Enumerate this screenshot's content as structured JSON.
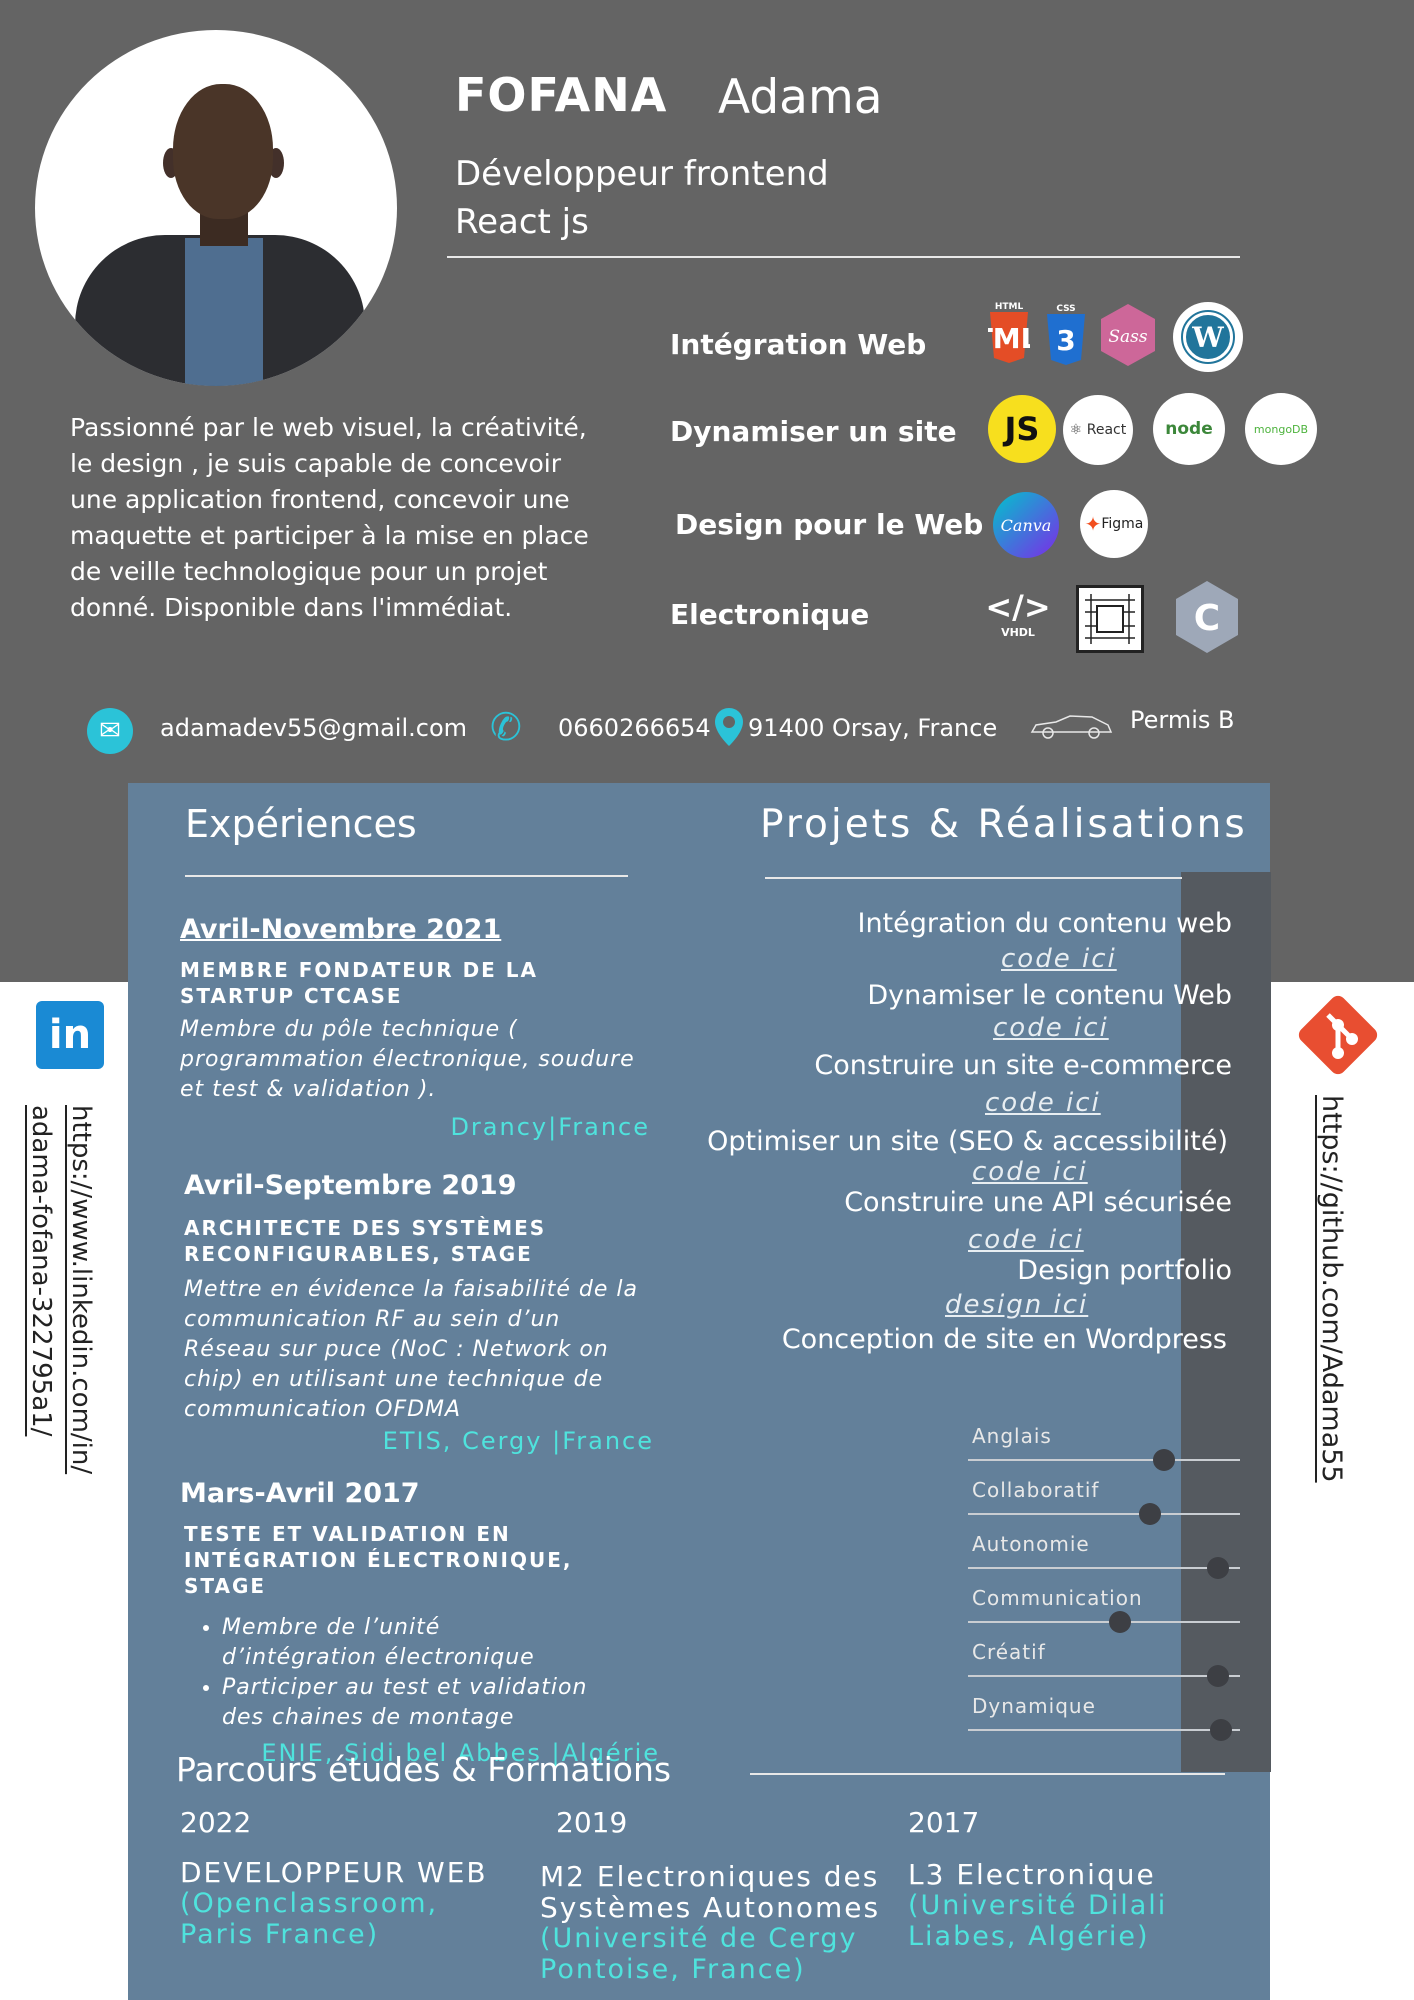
{
  "header": {
    "last_name": "FOFANA",
    "first_name": "Adama",
    "job_line1": "Développeur frontend",
    "job_line2": "React js"
  },
  "skills": {
    "web": {
      "label": "Intégration Web",
      "icons": [
        "HTML 5",
        "CSS 3",
        "Sass",
        "W"
      ]
    },
    "dynamic": {
      "label": "Dynamiser un site",
      "icons": [
        "JS",
        "React",
        "node",
        "mongoDB"
      ]
    },
    "design": {
      "label": "Design pour le Web",
      "icons": [
        "Canva",
        "Figma"
      ]
    },
    "electronics": {
      "label": "Electronique",
      "icons": [
        "</>",
        "VHDL",
        "C"
      ]
    }
  },
  "about": "Passionné par le web visuel, la créativité, le design , je suis capable de concevoir une application frontend, concevoir une maquette et participer à la mise en place de veille technologique pour un projet donné. Disponible dans l'immédiat.",
  "contact": {
    "email": "adamadev55@gmail.com",
    "phone": "0660266654",
    "location": "91400 Orsay, France",
    "license": "Permis  B"
  },
  "links": {
    "linkedin_line1": "https://www.linkedin.com/in/",
    "linkedin_line2": "adama-fofana-322795a1/",
    "github": "https://github.com/Adama55",
    "linkedin_icon": "in",
    "github_icon": "git"
  },
  "experiences": {
    "title": "Expériences",
    "items": [
      {
        "date": "Avril-Novembre 2021",
        "role": "MEMBRE FONDATEUR DE LA STARTUP CTCASE",
        "desc": "Membre du pôle technique ( programmation électronique, soudure et test & validation ).",
        "place": "Drancy|France"
      },
      {
        "date": "Avril-Septembre 2019",
        "role": "ARCHITECTE DES SYSTÈMES RECONFIGURABLES, STAGE",
        "desc": "Mettre en évidence la faisabilité de la communication RF au sein d’un Réseau sur puce (NoC : Network on chip) en utilisant une technique de communication OFDMA",
        "place": "ETIS, Cergy |France"
      },
      {
        "date": "Mars-Avril 2017",
        "role": "TESTE ET VALIDATION EN INTÉGRATION ÉLECTRONIQUE, STAGE",
        "bullets": [
          "Membre de l’unité d’intégration électronique",
          "Participer au test et validation des chaines de montage"
        ],
        "place": "ENIE, Sidi bel Abbes |Algérie"
      }
    ]
  },
  "projects": {
    "title": "Projets & Réalisations",
    "items": [
      {
        "label": "Intégration du contenu web",
        "link": "code ici"
      },
      {
        "label": "Dynamiser le contenu Web",
        "link": "code ici"
      },
      {
        "label": "Construire un site e-commerce",
        "link": "code ici"
      },
      {
        "label": "Optimiser un site (SEO & accessibilité)",
        "link": "code ici"
      },
      {
        "label": "Construire une API sécurisée",
        "link": "code ici"
      },
      {
        "label": "Design portfolio",
        "link": "design ici"
      },
      {
        "label": "Conception de site en Wordpress"
      }
    ]
  },
  "soft_skills": [
    {
      "label": "Anglais",
      "level": 0.72
    },
    {
      "label": "Collaboratif",
      "level": 0.67
    },
    {
      "label": "Autonomie",
      "level": 0.92
    },
    {
      "label": "Communication",
      "level": 0.56
    },
    {
      "label": "Créatif",
      "level": 0.92
    },
    {
      "label": "Dynamique",
      "level": 0.93
    }
  ],
  "education": {
    "title": "Parcours études & Formations",
    "items": [
      {
        "year": "2022",
        "title": "DEVELOPPEUR WEB",
        "school": "(Openclassroom, Paris France)"
      },
      {
        "year": "2019",
        "title": "M2 Electroniques des Systèmes Autonomes",
        "school": "(Université de Cergy Pontoise, France)"
      },
      {
        "year": "2017",
        "title": "L3 Electronique",
        "school": "(Université Dilali Liabes, Algérie)"
      }
    ]
  }
}
